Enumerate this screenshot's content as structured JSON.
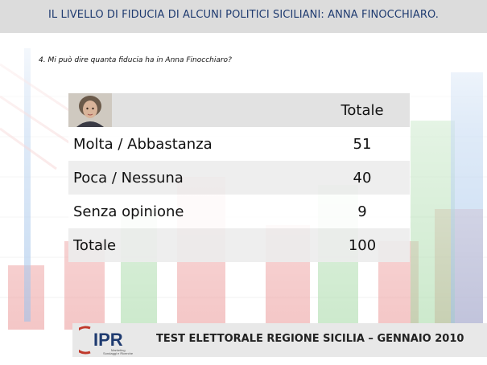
{
  "header": {
    "title": "IL LIVELLO DI FIDUCIA DI ALCUNI POLITICI SICILIANI: ANNA FINOCCHIARO."
  },
  "question": "4. Mi può dire quanta fiducia ha in  Anna Finocchiaro?",
  "table": {
    "column_header": "Totale",
    "rows": [
      {
        "label": "Molta  / Abbastanza",
        "value": "51"
      },
      {
        "label": "Poca / Nessuna",
        "value": "40"
      },
      {
        "label": "Senza opinione",
        "value": "9"
      },
      {
        "label": "Totale",
        "value": "100"
      }
    ]
  },
  "footer": {
    "logo_text": "IPR",
    "logo_subtext": "Marketing Sondaggi e Ricerche",
    "text": "TEST ELETTORALE REGIONE SICILIA – GENNAIO 2010"
  },
  "colors": {
    "title": "#1f3b70",
    "bars_red": "#e26a6a",
    "bars_green": "#7bc67b",
    "bars_blue": "#6f9fd8"
  }
}
